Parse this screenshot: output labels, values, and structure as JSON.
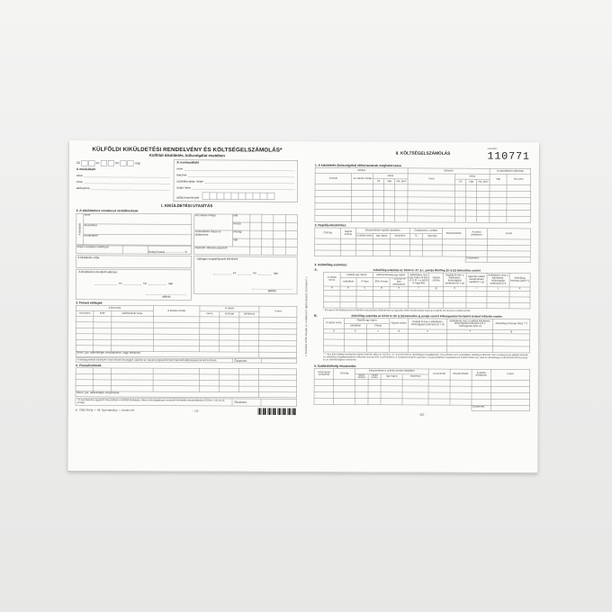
{
  "left": {
    "title": "KÜLFÖLDI KIKÜLDETÉSI RENDELVÉNY ÉS KÖLTSÉGELSZÁMOLÁS*",
    "subtitle": "Külföldi kiküldetés, külszolgálat esetében",
    "date": {
      "year_prefix": "20",
      "ev": "év",
      "ho": "hó",
      "nap": "nap"
    },
    "employer": {
      "label": "A munkáltató",
      "neve": "neve",
      "cime": "címe",
      "adoszama": "adószáma"
    },
    "employee": {
      "label": "A munkavállaló",
      "neve": "neve",
      "lakcime": "lakcíme",
      "szuletesi": "születési ideje, helye",
      "anyja": "anyja neve",
      "adoazonosito": "adóazonosító jele"
    },
    "part_title": "I. KIKÜLDETÉSI UTASÍTÁS",
    "s2": {
      "title": "2. A kiküldetésre vonatkozó rendelkezések",
      "kikuldott": "A kiküldött",
      "neve": "neve",
      "beosztasa": "beosztása",
      "munkakore": "munkaköre",
      "napidij": "Milyen osztályú napidíj jár",
      "dologi": "Dologi kiadás",
      "pct": "%",
      "celja": "A kiküldetés célja",
      "utazas_modja": "Az utazás módja",
      "oda": "oda",
      "vissza": "vissza",
      "helye": "A kiküldetés helye és időtartama",
      "orszag": "ország",
      "nap": "nap",
      "repulo": "Repülőn utazásra jogosult",
      "elrendelo": "A kiküldetést elrendelő aláírása",
      "utolagos": "Utólagos engedélyezett eltérések",
      "ev": "év",
      "ho": "hó",
      "nap2": "nap",
      "alairas": "aláírás"
    },
    "s3": {
      "title": "3. Felvett előlegek",
      "bizonylat": "A bizonylat",
      "sorszama": "sorszáma",
      "kelte": "kelte",
      "kiallitas": "kiállításának helye",
      "felvetel": "A felvétel módja",
      "valuta": "A valuta",
      "neme": "neme",
      "osszege": "összege",
      "arfolyama": "árfolyama",
      "forint": "Forint",
      "szja": "Szem. jöv. adóelőlegre visszafizetve, vagy befizetve",
      "note": "A költségvetéstől bármilyen címen felvett összeggel, valamint az utazásra jogosult fel nem használt ellátmányával el kell számolni.",
      "osszesen": "Összesen:"
    },
    "s4": {
      "title": "4. Visszafizetések",
      "szja": "Szem. jöv. adóelőlegre elszámolva",
      "osszesen": "Összesen:"
    },
    "footnote": "* A nyomtatvány egyaránt használható a külföldi kiküldetés, illetve külszolgálatnak minősülő kiküldetés elszámolására (SZJA tv. 3.§ 12-13. pontja)",
    "imprint": "B. 7300-391/új — Áll. Nyomtatvány — Kardex Kft.",
    "page_num": "- 1/1 -"
  },
  "right": {
    "title": "II. KÖLTSÉGELSZÁMOLÁS",
    "serial_label": "sorszám:",
    "serial": "110771",
    "vertical_note": "« Kitöltés előtt kérjük a vonatkozó tájékoztatót elolvasni! »",
    "s1": {
      "title": "1. A kiküldetés (külszolgálat) időtartamának meghatározása",
      "indulas": "Indulás",
      "erkezes": "Érkezés",
      "hatar": "A határátlépés időpontja",
      "honnan": "honnan",
      "utmod": "az utazás módja",
      "mikor": "mikor",
      "ho": "hó",
      "nap": "nap",
      "ora": "óra, perc",
      "hova": "hová",
      "mikor2": "mikor",
      "ho2": "hó",
      "nap2": "nap",
      "ora2": "óra, perc",
      "nap3": "nap",
      "ora3": "óra, perc"
    },
    "s2": {
      "title": "2. Napidíj-elszámolás:",
      "orszag": "Ország",
      "napok": "Napok száma",
      "elszam": "Elszámolható napidíj valutában",
      "neme": "a valuta neme",
      "egy": "egy napra",
      "ossz": "összesen",
      "csokk": "Csökkentés v. pótlás",
      "pct": "%",
      "osszege": "összege",
      "elszamolhato": "Elszámolható",
      "arf": "A valuta árfolyama",
      "forint": "Forint",
      "total": "Összesen:"
    },
    "s3_title": "3. Adóelőleg-számítás:",
    "s3a": {
      "label": "A.",
      "caption": "Adóelőleg-számítás az SZJA tv. 27. § c. pontja illetőleg 29. § (2) bekezdése szerint",
      "valuta": "A valuta neme",
      "napidij": "Napidíj egy napra",
      "valutaban": "valutában",
      "ftban": "Ft-ban",
      "adomentes": "Adómentesség egy napra",
      "pct30": "30% Ft-ban",
      "usd10": "* 10 USD Ft-ban árfolyamon",
      "adokoteles_nap": "Adóköteles rész egy napra Ft-ban (c-d, ill. c-e közül a nagyobb)",
      "napok": "Napok száma",
      "napidij_ft": "Napidíj Ft-ban a kiküldetés, külszolgálat tartamára (b × g)",
      "igazolas": "Igazolás nélkül elszámolható napidíj (f × g)",
      "adokoteles_resz": "Adóköteles rész a kiküldetés, külszolgálat tartamára (h-i)",
      "adoeloleg": "Adóelőleg összege (lásd **)",
      "letters": [
        "a",
        "b",
        "c",
        "d",
        "e",
        "f",
        "g",
        "h",
        "i",
        "j",
        "k"
      ],
      "note": "* 90 napon túli kiküldetésnél a külföldön tartózkodás időtartamára az igazolás nélkül elszámolható összeg a napidíj 1/4 részével csökkentendő."
    },
    "s3b": {
      "label": "B.",
      "caption": "Adóelőleg-számítás az SZJA tv. 83. § (4) bekezdés a) pontja szerint költségvetési forrásból történő kifizetés esetén",
      "valuta": "A valuta neme",
      "napidij": "Napidíj egy napra",
      "valutaban": "valutában",
      "ftban": "Ft-ban",
      "napok": "Napok száma",
      "napidij_ft": "Napidíj Ft-ban a kiküldetés, külszolgálat tartamára (b × d)",
      "adokoteles": "Adóköteles rész a külföldi kiküldetés, külszolgálat tartamára (az e összegének 50%-a)",
      "adoeloleg": "Adóelőleg összege (lásd ***)",
      "letters": [
        "a",
        "b",
        "c",
        "d",
        "e",
        "f",
        "g"
      ],
      "note": "*** Ha a külszolgálat munkaviszonyban történik, akkor az SZJA tv. 47. § szerint kell az adóelőleget megállapítani. Ha a kifizető nem munkáltató, illetőleg a kifizetés nem munkaviszony alapján történik, az adóelőleg megállapításánál a kifizetett összeg 50%-a a jövedelem. A munkaviszonyból származó, a jogszabályban meghatározott mérték feletti rész után az adóelőleget a kifizetőnek kell levonnia és az adóhatósághoz befizetnie."
    },
    "s4": {
      "title": "4. Szállásköltség elszámolás:",
      "bizonylat": "A bizonylat sorszáma",
      "orszag": "Ország",
      "elszam": "Elszámolható a számla szerint valutában",
      "napok": "napok száma",
      "neme": "valuta neme",
      "egy": "egy napra",
      "ossz": "összesen",
      "levonando": "Levonandó",
      "elszamolhato": "Elszámolható",
      "arf": "A valuta árfolyama",
      "forint": "Forint",
      "total": "Összesen:"
    },
    "page_num": "- 1/2 -"
  }
}
